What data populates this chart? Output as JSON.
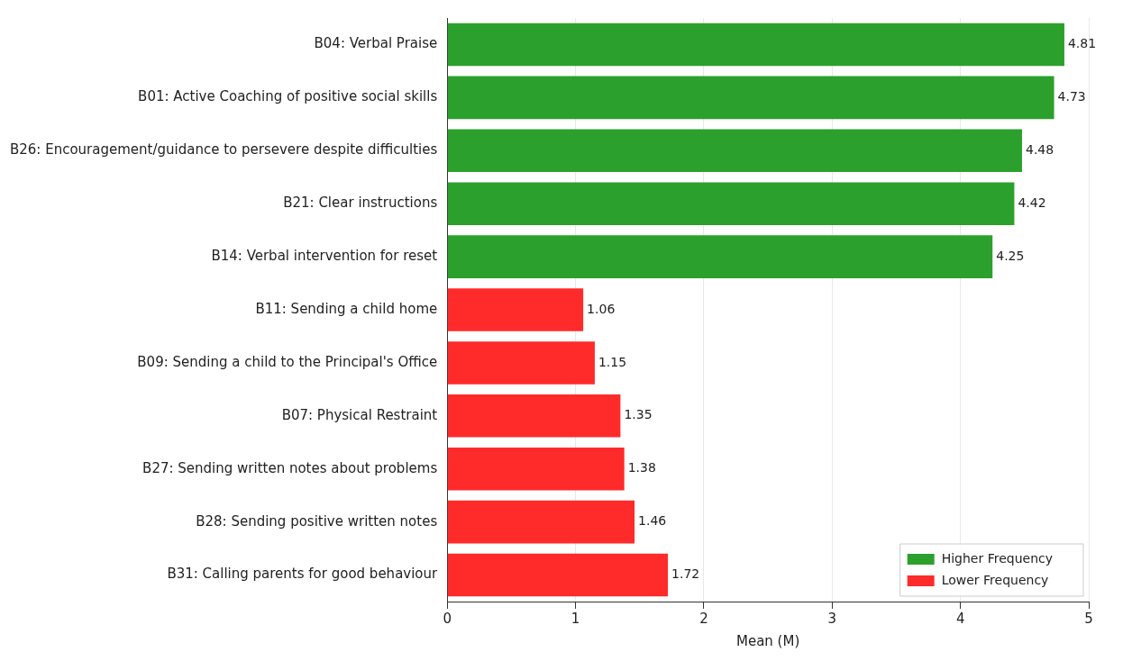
{
  "chart_data": {
    "type": "bar",
    "orientation": "horizontal",
    "xlabel": "Mean (M)",
    "categories": [
      "B04: Verbal Praise",
      "B01: Active Coaching of positive social skills",
      "B26: Encouragement/guidance to persevere despite difficulties",
      "B21: Clear instructions",
      "B14: Verbal intervention for reset",
      "B11: Sending a child home",
      "B09: Sending a child to the Principal's Office",
      "B07: Physical Restraint",
      "B27: Sending written notes about problems",
      "B28: Sending positive written notes",
      "B31: Calling parents for good behaviour"
    ],
    "series": [
      {
        "name": "Higher Frequency",
        "color": "#2ca02c",
        "values": [
          4.81,
          4.73,
          4.48,
          4.42,
          4.25,
          null,
          null,
          null,
          null,
          null,
          null
        ]
      },
      {
        "name": "Lower Frequency",
        "color": "#ff2a2a",
        "values": [
          null,
          null,
          null,
          null,
          null,
          1.06,
          1.15,
          1.35,
          1.38,
          1.46,
          1.72
        ]
      }
    ],
    "xlim": [
      0,
      5
    ],
    "xticks": [
      0,
      1,
      2,
      3,
      4,
      5
    ],
    "grid": "x",
    "legend": "bottom right",
    "data_labels": true
  }
}
